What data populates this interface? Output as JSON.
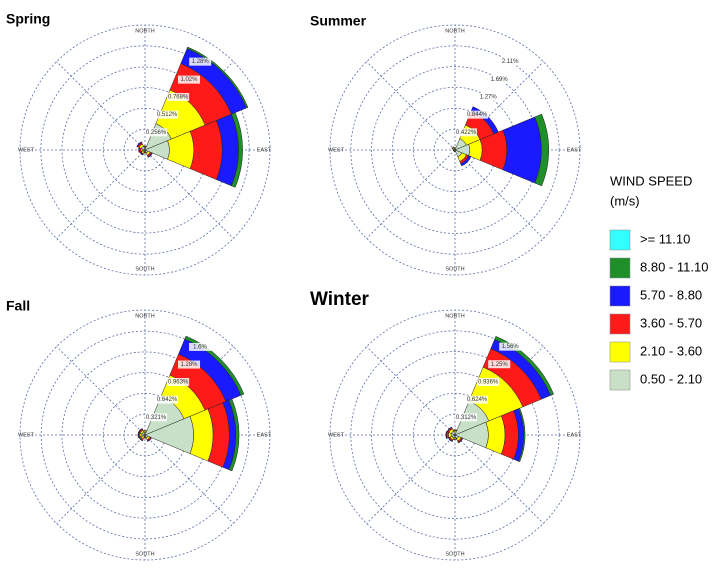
{
  "chart_data": [
    {
      "type": "windrose",
      "title": "Spring",
      "categories": [
        "NORTH",
        null,
        "EAST",
        null,
        "SOUTH",
        null,
        "WEST",
        null
      ],
      "rlim": [
        0,
        1.536
      ],
      "rticks": [
        {
          "value": 0.256,
          "label": "0.256%"
        },
        {
          "value": 0.512,
          "label": "0.512%"
        },
        {
          "value": 0.768,
          "label": "0.768%"
        },
        {
          "value": 1.02,
          "label": "1.02%"
        },
        {
          "value": 1.28,
          "label": "1.28%"
        }
      ],
      "series": [
        {
          "values": [
            0.03,
            0.35,
            0.3,
            0.04,
            0.02,
            0.03,
            0.03,
            0.05
          ]
        },
        {
          "values": [
            0.01,
            0.45,
            0.3,
            0.03,
            0.01,
            0.02,
            0.02,
            0.03
          ]
        },
        {
          "values": [
            0.01,
            0.35,
            0.35,
            0.02,
            0.01,
            0.01,
            0.02,
            0.02
          ]
        },
        {
          "values": [
            0.0,
            0.2,
            0.2,
            0.01,
            0.0,
            0.01,
            0.01,
            0.01
          ]
        },
        {
          "values": [
            0.0,
            0.02,
            0.05,
            0.0,
            0.0,
            0.0,
            0.0,
            0.0
          ]
        },
        {
          "values": [
            0,
            0,
            0,
            0,
            0,
            0,
            0,
            0
          ]
        }
      ]
    },
    {
      "type": "windrose",
      "title": "Summer",
      "categories": [
        "NORTH",
        null,
        "EAST",
        null,
        "SOUTH",
        null,
        "WEST",
        null
      ],
      "rlim": [
        0,
        2.532
      ],
      "rticks": [
        {
          "value": 0.422,
          "label": "0.422%"
        },
        {
          "value": 0.844,
          "label": "0.844%"
        },
        {
          "value": 1.27,
          "label": "1.27%"
        },
        {
          "value": 1.69,
          "label": "1.69%"
        },
        {
          "value": 2.11,
          "label": "2.11%"
        }
      ],
      "series": [
        {
          "values": [
            0.04,
            0.25,
            0.3,
            0.15,
            0.03,
            0.02,
            0.03,
            0.04
          ]
        },
        {
          "values": [
            0.01,
            0.3,
            0.25,
            0.1,
            0.01,
            0.01,
            0.01,
            0.02
          ]
        },
        {
          "values": [
            0.0,
            0.3,
            0.5,
            0.05,
            0.0,
            0.0,
            0.0,
            0.01
          ]
        },
        {
          "values": [
            0.0,
            0.1,
            0.7,
            0.05,
            0.0,
            0.0,
            0.0,
            0.0
          ]
        },
        {
          "values": [
            0.0,
            0.0,
            0.15,
            0.0,
            0.0,
            0.0,
            0.0,
            0.0
          ]
        },
        {
          "values": [
            0,
            0,
            0,
            0,
            0,
            0,
            0,
            0
          ]
        }
      ]
    },
    {
      "type": "windrose",
      "title": "Fall",
      "categories": [
        "NORTH",
        null,
        "EAST",
        null,
        "SOUTH",
        null,
        "WEST",
        null
      ],
      "rlim": [
        0,
        1.926
      ],
      "rticks": [
        {
          "value": 0.321,
          "label": "0.321%"
        },
        {
          "value": 0.642,
          "label": "0.642%"
        },
        {
          "value": 0.963,
          "label": "0.963%"
        },
        {
          "value": 1.28,
          "label": "1.28%"
        },
        {
          "value": 1.6,
          "label": "1.6%"
        }
      ],
      "series": [
        {
          "values": [
            0.04,
            0.65,
            0.75,
            0.05,
            0.03,
            0.04,
            0.05,
            0.05
          ]
        },
        {
          "values": [
            0.02,
            0.35,
            0.3,
            0.03,
            0.01,
            0.03,
            0.03,
            0.03
          ]
        },
        {
          "values": [
            0.01,
            0.35,
            0.25,
            0.02,
            0.01,
            0.02,
            0.02,
            0.02
          ]
        },
        {
          "values": [
            0.0,
            0.25,
            0.1,
            0.01,
            0.0,
            0.01,
            0.01,
            0.01
          ]
        },
        {
          "values": [
            0.0,
            0.05,
            0.05,
            0.0,
            0.0,
            0.0,
            0.0,
            0.0
          ]
        },
        {
          "values": [
            0,
            0,
            0,
            0,
            0,
            0,
            0,
            0
          ]
        }
      ]
    },
    {
      "type": "windrose",
      "title": "Winter",
      "categories": [
        "NORTH",
        null,
        "EAST",
        null,
        "SOUTH",
        null,
        "WEST",
        null
      ],
      "rlim": [
        0,
        1.872
      ],
      "rticks": [
        {
          "value": 0.312,
          "label": "0.312%"
        },
        {
          "value": 0.624,
          "label": "0.624%"
        },
        {
          "value": 0.936,
          "label": "0.936%"
        },
        {
          "value": 1.25,
          "label": "1.25%"
        },
        {
          "value": 1.56,
          "label": "1.56%"
        }
      ],
      "series": [
        {
          "values": [
            0.05,
            0.55,
            0.5,
            0.06,
            0.04,
            0.05,
            0.06,
            0.06
          ]
        },
        {
          "values": [
            0.02,
            0.55,
            0.25,
            0.04,
            0.02,
            0.03,
            0.04,
            0.04
          ]
        },
        {
          "values": [
            0.01,
            0.3,
            0.2,
            0.02,
            0.01,
            0.02,
            0.03,
            0.02
          ]
        },
        {
          "values": [
            0.0,
            0.15,
            0.08,
            0.01,
            0.0,
            0.01,
            0.01,
            0.01
          ]
        },
        {
          "values": [
            0.0,
            0.05,
            0.02,
            0.0,
            0.0,
            0.0,
            0.0,
            0.0
          ]
        },
        {
          "values": [
            0,
            0,
            0,
            0,
            0,
            0,
            0,
            0
          ]
        }
      ]
    }
  ],
  "legend": {
    "title": "WIND SPEED",
    "subtitle": "(m/s)",
    "items": [
      {
        "name": "0.50 - 2.10",
        "color": "#c8e0c8"
      },
      {
        "name": "2.10 - 3.60",
        "color": "#ffff00"
      },
      {
        "name": "3.60 - 5.70",
        "color": "#ff1a1a"
      },
      {
        "name": "5.70 - 8.80",
        "color": "#1a1aff"
      },
      {
        "name": "8.80 - 11.10",
        "color": "#1f8f2a"
      },
      {
        "name": ">= 11.10",
        "color": "#33ffff"
      }
    ]
  }
}
